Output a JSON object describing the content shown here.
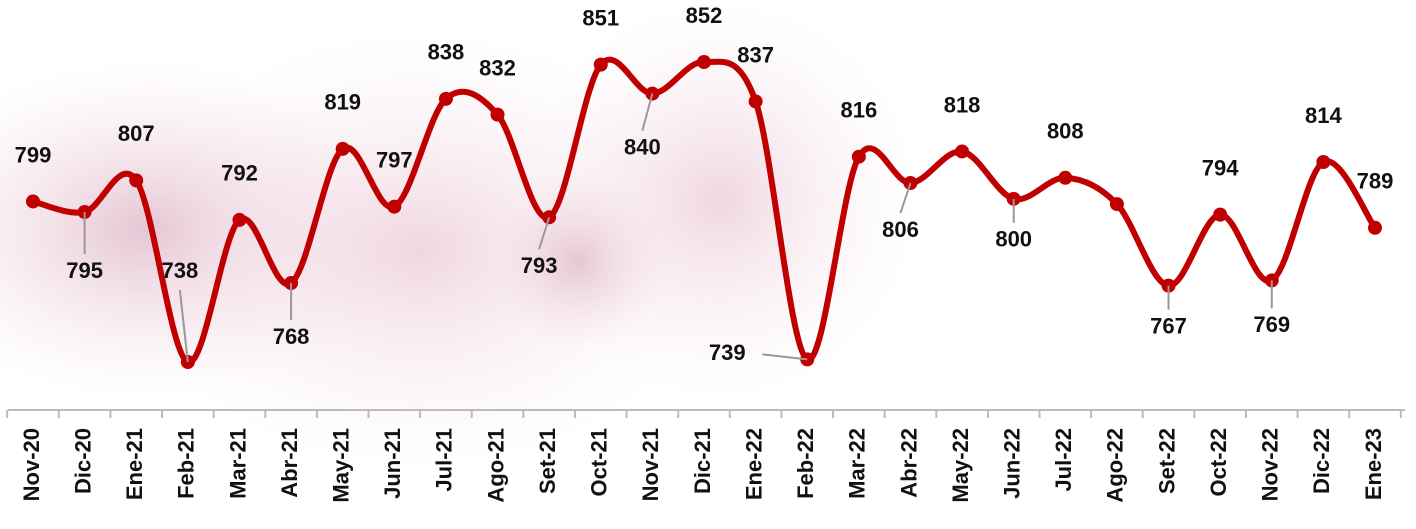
{
  "chart_data": {
    "type": "line",
    "categories": [
      "Nov-20",
      "Dic-20",
      "Ene-21",
      "Feb-21",
      "Mar-21",
      "Abr-21",
      "May-21",
      "Jun-21",
      "Jul-21",
      "Ago-21",
      "Set-21",
      "Oct-21",
      "Nov-21",
      "Dic-21",
      "Ene-22",
      "Feb-22",
      "Mar-22",
      "Abr-22",
      "May-22",
      "Jun-22",
      "Jul-22",
      "Ago-22",
      "Set-22",
      "Oct-22",
      "Nov-22",
      "Dic-22",
      "Ene-23"
    ],
    "series": [
      {
        "color": "#c00000",
        "values": [
          799,
          795,
          807,
          738,
          792,
          768,
          819,
          797,
          838,
          832,
          793,
          851,
          840,
          852,
          837,
          739,
          816,
          806,
          818,
          800,
          808,
          798,
          767,
          794,
          769,
          814,
          789
        ],
        "value_labels": [
          "799",
          "795",
          "807",
          "738",
          "792",
          "768",
          "819",
          "797",
          "838",
          "832",
          "793",
          "851",
          "840",
          "852",
          "837",
          "739",
          "816",
          "806",
          "818",
          "800",
          "808",
          null,
          "767",
          "794",
          "769",
          "814",
          "789"
        ]
      }
    ]
  }
}
